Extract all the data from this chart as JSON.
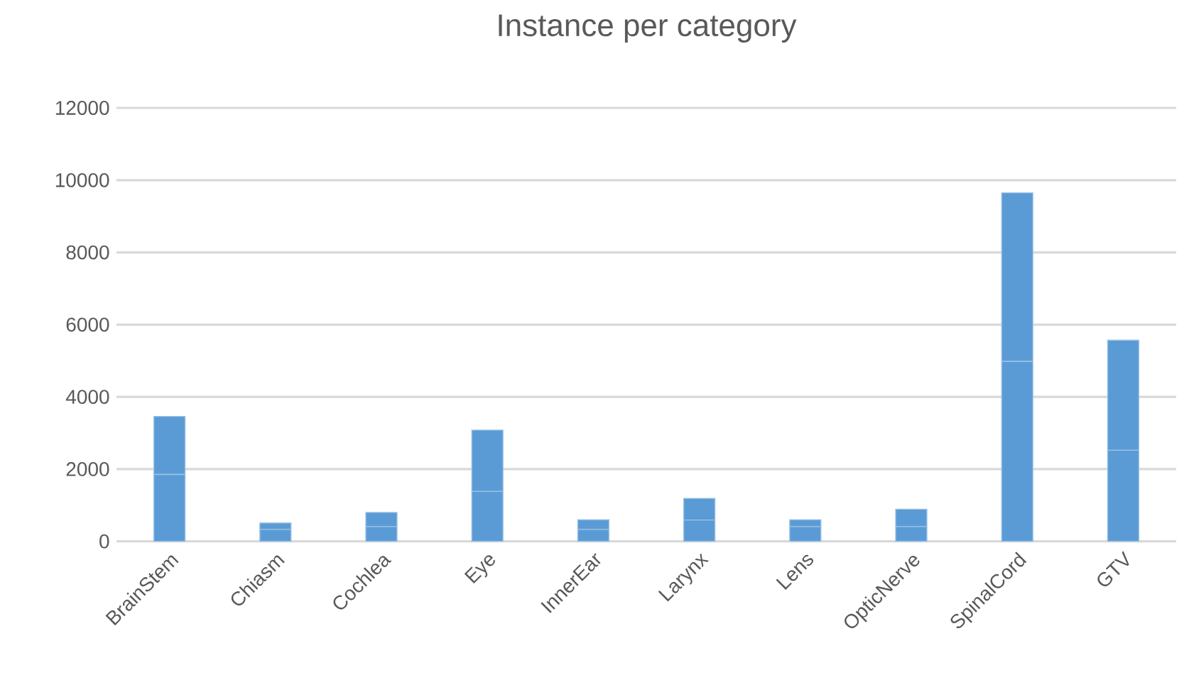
{
  "chart_data": {
    "type": "bar",
    "title": "Instance per category",
    "stacked": true,
    "grid": "y",
    "categories": [
      "BrainStem",
      "Chiasm",
      "Cochlea",
      "Eye",
      "InnerEar",
      "Larynx",
      "Lens",
      "OpticNerve",
      "SpinalCord",
      "GTV"
    ],
    "series": [
      {
        "color": "#5b9bd5",
        "values": [
          1850,
          330,
          410,
          1380,
          330,
          590,
          410,
          410,
          4980,
          2520
        ]
      },
      {
        "color": "#5b9bd5",
        "values": [
          1610,
          180,
          390,
          1700,
          270,
          600,
          190,
          480,
          4670,
          3050
        ]
      }
    ],
    "ylim": [
      0,
      12000
    ],
    "yticks": [
      0,
      2000,
      4000,
      6000,
      8000,
      10000,
      12000
    ]
  }
}
